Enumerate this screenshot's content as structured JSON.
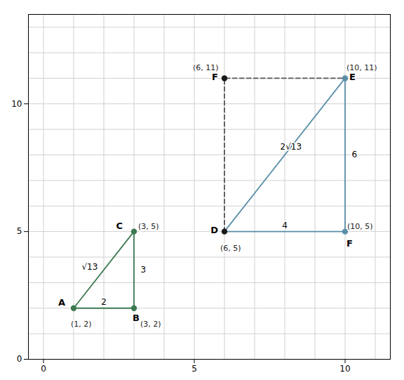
{
  "chart_data": {
    "type": "line",
    "xlim": [
      -0.5,
      11.5
    ],
    "ylim": [
      0,
      13.5
    ],
    "xticks": [
      0,
      5,
      10
    ],
    "yticks": [
      0,
      5,
      10
    ],
    "grid": true,
    "series": [
      {
        "type": "line",
        "color": "#3d7a52",
        "line_style": "solid",
        "x": [
          1,
          3,
          3,
          1
        ],
        "values": [
          2,
          2,
          5,
          2
        ]
      },
      {
        "type": "line",
        "color": "#5b8fa8",
        "line_style": "solid",
        "x": [
          6,
          10,
          10,
          6
        ],
        "values": [
          5,
          5,
          11,
          5
        ]
      },
      {
        "type": "line",
        "color": "#555555",
        "line_style": "dashed",
        "x": [
          6,
          6,
          10
        ],
        "values": [
          5,
          11,
          11
        ]
      },
      {
        "type": "scatter",
        "color": "#3d7a52",
        "marker": "o",
        "x": [
          1,
          3,
          3
        ],
        "values": [
          2,
          2,
          5
        ],
        "data_labels": true,
        "value_labels": [
          "(1, 2)",
          "(3, 2)",
          "(3, 5)"
        ]
      },
      {
        "type": "scatter",
        "color": "#1a1a1a",
        "marker": "o",
        "x": [
          6,
          6
        ],
        "values": [
          5,
          11
        ],
        "data_labels": true,
        "value_labels": [
          "(6, 5)",
          "(6, 11)"
        ]
      },
      {
        "type": "scatter",
        "color": "#5b8fa8",
        "marker": "o",
        "x": [
          10,
          10
        ],
        "values": [
          11,
          5
        ],
        "data_labels": true,
        "value_labels": [
          "(10, 11)",
          "(10, 5)"
        ]
      }
    ],
    "annotations": [
      {
        "text": "A",
        "x": 1,
        "y": 2
      },
      {
        "text": "B",
        "x": 3,
        "y": 2
      },
      {
        "text": "C",
        "x": 3,
        "y": 5
      },
      {
        "text": "D",
        "x": 6,
        "y": 5
      },
      {
        "text": "E",
        "x": 10,
        "y": 11
      },
      {
        "text": "F",
        "x": 6,
        "y": 11
      },
      {
        "text": "F",
        "x": 10,
        "y": 5
      },
      {
        "text": "2",
        "x": 2.0,
        "y": 2.08
      },
      {
        "text": "3",
        "x": 3.22,
        "y": 3.5
      },
      {
        "text": "√13",
        "x": 1.8,
        "y": 3.6
      },
      {
        "text": "4",
        "x": 8.0,
        "y": 5.08
      },
      {
        "text": "6",
        "x": 10.22,
        "y": 8.0
      },
      {
        "text": "2√13",
        "x": 7.85,
        "y": 8.3
      }
    ]
  }
}
